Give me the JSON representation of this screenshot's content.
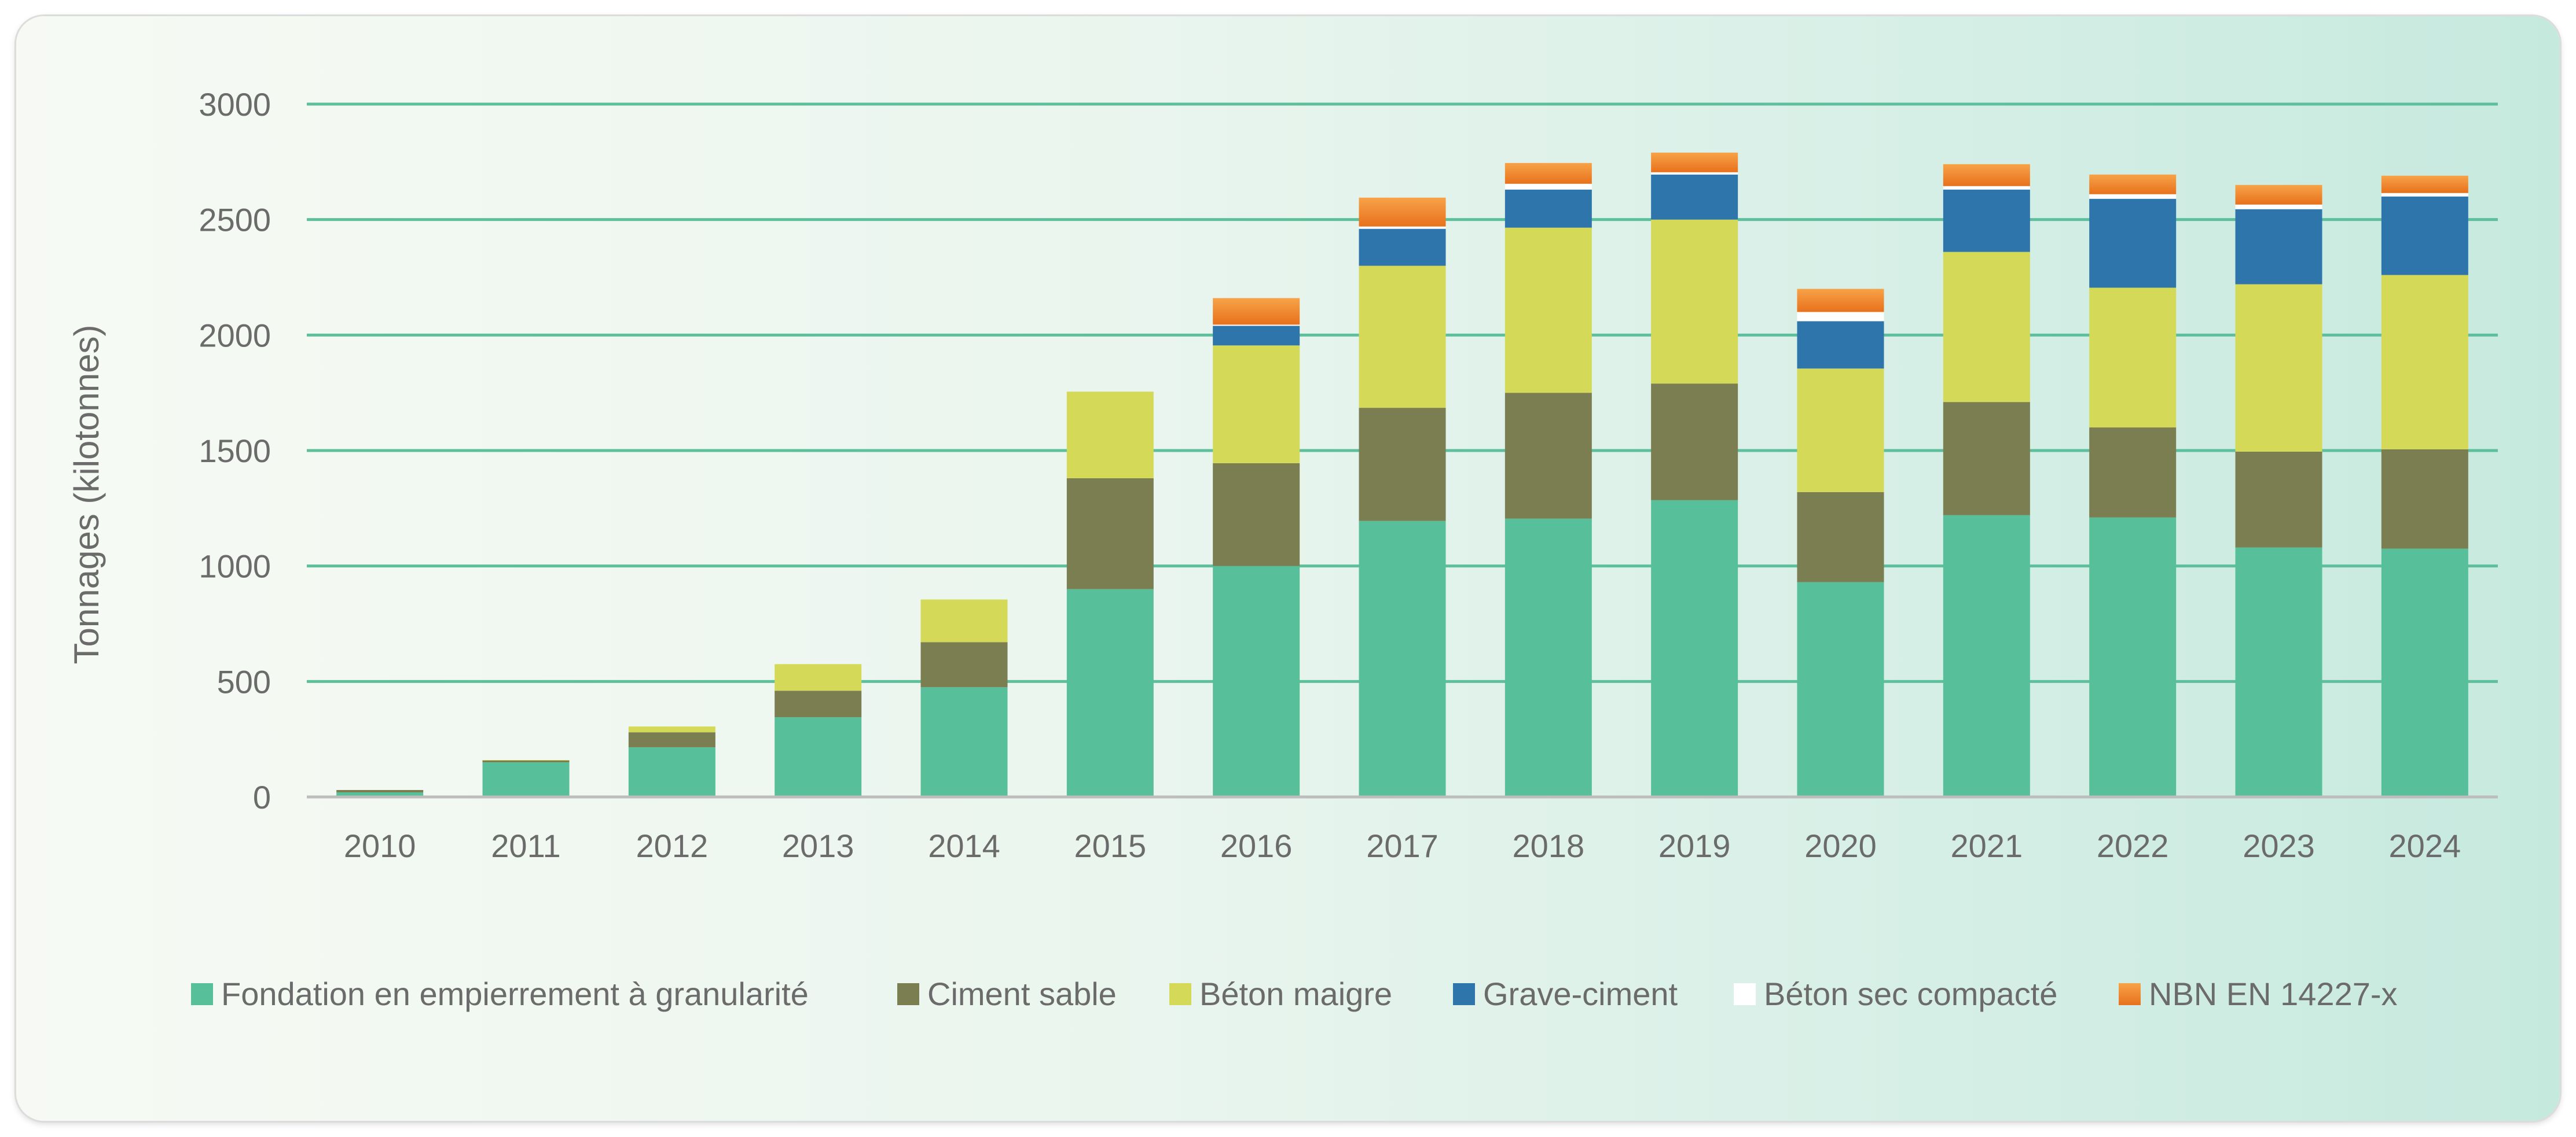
{
  "chart_data": {
    "type": "bar",
    "stacked": true,
    "title": "",
    "xlabel": "",
    "ylabel": "Tonnages (kilotonnes)",
    "ylim": [
      0,
      3000
    ],
    "yticks": [
      0,
      500,
      1000,
      1500,
      2000,
      2500,
      3000
    ],
    "grid": true,
    "legend_position": "bottom",
    "categories": [
      "2010",
      "2011",
      "2012",
      "2013",
      "2014",
      "2015",
      "2016",
      "2017",
      "2018",
      "2019",
      "2020",
      "2021",
      "2022",
      "2023",
      "2024"
    ],
    "series": [
      {
        "name": "Fondation en empierrement à granularité",
        "color": "#58bf9b",
        "values": [
          20,
          150,
          215,
          345,
          475,
          900,
          1000,
          1195,
          1205,
          1285,
          930,
          1220,
          1210,
          1080,
          1075
        ]
      },
      {
        "name": "Ciment sable",
        "color": "#7a7e50",
        "values": [
          10,
          8,
          65,
          115,
          195,
          480,
          445,
          490,
          545,
          505,
          390,
          490,
          390,
          415,
          430
        ]
      },
      {
        "name": "Béton maigre",
        "color": "#d4d957",
        "values": [
          0,
          2,
          25,
          115,
          185,
          375,
          510,
          615,
          715,
          710,
          535,
          650,
          605,
          725,
          755
        ]
      },
      {
        "name": "Grave-ciment",
        "color": "#2e75ab",
        "values": [
          0,
          0,
          0,
          0,
          0,
          0,
          85,
          160,
          165,
          195,
          205,
          270,
          385,
          325,
          340
        ]
      },
      {
        "name": "Béton sec compacté",
        "color": "#ffffff",
        "values": [
          0,
          0,
          0,
          0,
          0,
          0,
          5,
          10,
          25,
          10,
          40,
          15,
          20,
          20,
          15
        ]
      },
      {
        "name": "NBN EN 14227-x",
        "color": "#f28a28",
        "values": [
          0,
          0,
          0,
          0,
          0,
          0,
          115,
          125,
          90,
          85,
          100,
          95,
          85,
          85,
          75
        ]
      }
    ]
  }
}
